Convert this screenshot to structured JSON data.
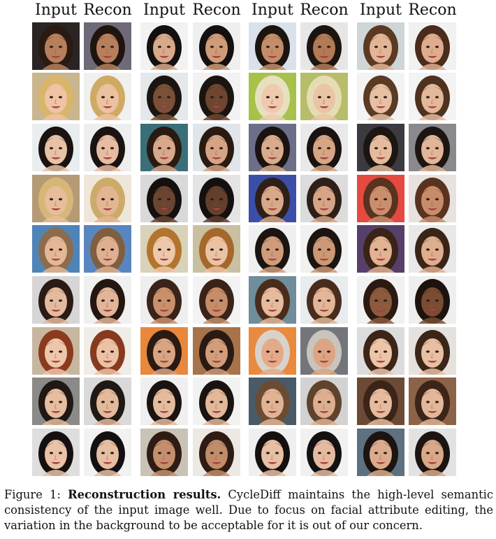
{
  "column_headers": [
    "Input",
    "Recon",
    "Input",
    "Recon",
    "Input",
    "Recon",
    "Input",
    "Recon"
  ],
  "grid": {
    "rows": 9,
    "cols": 8
  },
  "caption": {
    "prefix": "Figure 1: ",
    "title": "Reconstruction results.",
    "body": " CycleDiff maintains the high-level semantic consistency of the input image well. Due to focus on facial attribute editing, the variation in the background to be acceptable for it is out of our concern."
  },
  "tiles": [
    {
      "bg": "#2a2524",
      "hair": "#2b1a12",
      "skin": "#b7805c"
    },
    {
      "bg": "#6f6a78",
      "hair": "#1f1410",
      "skin": "#b7805c"
    },
    {
      "bg": "#f2f2f2",
      "hair": "#141010",
      "skin": "#d8a98a"
    },
    {
      "bg": "#efefef",
      "hair": "#141010",
      "skin": "#cf9b78"
    },
    {
      "bg": "#d9e2ea",
      "hair": "#1c1410",
      "skin": "#c48d6a"
    },
    {
      "bg": "#e6e6e6",
      "hair": "#1c1410",
      "skin": "#b27a55"
    },
    {
      "bg": "#cfd6d8",
      "hair": "#5a3a22",
      "skin": "#e3b597"
    },
    {
      "bg": "#f1f1f1",
      "hair": "#4a2c1c",
      "skin": "#dfad8e"
    },
    {
      "bg": "#c9b58e",
      "hair": "#d9b56a",
      "skin": "#efc3a4"
    },
    {
      "bg": "#f0f0f0",
      "hair": "#ceaa63",
      "skin": "#ecc1a0"
    },
    {
      "bg": "#e4e8ea",
      "hair": "#1b1512",
      "skin": "#7a5038"
    },
    {
      "bg": "#f2f2f2",
      "hair": "#1b1512",
      "skin": "#6e4630"
    },
    {
      "bg": "#a6c24a",
      "hair": "#e7e0c0",
      "skin": "#efc9ae"
    },
    {
      "bg": "#b7bd6a",
      "hair": "#e6dcb4",
      "skin": "#eac4a6"
    },
    {
      "bg": "#f3f3f3",
      "hair": "#5a3b24",
      "skin": "#e7bfa2"
    },
    {
      "bg": "#f3f3f3",
      "hair": "#4e321f",
      "skin": "#e4b89a"
    },
    {
      "bg": "#e9edef",
      "hair": "#1a1311",
      "skin": "#e9c1a5"
    },
    {
      "bg": "#eeeeee",
      "hair": "#1a1311",
      "skin": "#e7bca0"
    },
    {
      "bg": "#3a6e78",
      "hair": "#2a1a12",
      "skin": "#d8a88b"
    },
    {
      "bg": "#dfe5e8",
      "hair": "#2a1a12",
      "skin": "#d5a386"
    },
    {
      "bg": "#6b6f88",
      "hair": "#1a1311",
      "skin": "#d9ab8c"
    },
    {
      "bg": "#e9e9ea",
      "hair": "#1a1311",
      "skin": "#d6a584"
    },
    {
      "bg": "#3a3a40",
      "hair": "#1c1512",
      "skin": "#e5bb9d"
    },
    {
      "bg": "#8a8a8e",
      "hair": "#1c1512",
      "skin": "#e2b597"
    },
    {
      "bg": "#b59a76",
      "hair": "#d7b777",
      "skin": "#e7bd9c"
    },
    {
      "bg": "#efe6da",
      "hair": "#ccaa6a",
      "skin": "#e3b693"
    },
    {
      "bg": "#d9d9d9",
      "hair": "#141010",
      "skin": "#6a4530"
    },
    {
      "bg": "#e4e4e4",
      "hair": "#141010",
      "skin": "#643f2b"
    },
    {
      "bg": "#3c4fa8",
      "hair": "#2e2018",
      "skin": "#d9a889"
    },
    {
      "bg": "#dcdcdc",
      "hair": "#2e2018",
      "skin": "#d7a585"
    },
    {
      "bg": "#e44a3f",
      "hair": "#5a3220",
      "skin": "#c98f6c"
    },
    {
      "bg": "#e7e2dd",
      "hair": "#5a3220",
      "skin": "#c78d6a"
    },
    {
      "bg": "#4f84b8",
      "hair": "#8c6c4c",
      "skin": "#e4b797"
    },
    {
      "bg": "#5a86c0",
      "hair": "#7f5f40",
      "skin": "#dfb090"
    },
    {
      "bg": "#d7d2b8",
      "hair": "#b3742e",
      "skin": "#eec8aa"
    },
    {
      "bg": "#c8c0a0",
      "hair": "#a5682a",
      "skin": "#ebc3a4"
    },
    {
      "bg": "#efefef",
      "hair": "#1b1411",
      "skin": "#cf9c79"
    },
    {
      "bg": "#f1f1f1",
      "hair": "#1b1411",
      "skin": "#cc9875"
    },
    {
      "bg": "#56406a",
      "hair": "#3a2418",
      "skin": "#e2b293"
    },
    {
      "bg": "#e8e8e8",
      "hair": "#3a2418",
      "skin": "#dfae8e"
    },
    {
      "bg": "#d6d6d6",
      "hair": "#2a1b14",
      "skin": "#e4ba9e"
    },
    {
      "bg": "#f0f0f0",
      "hair": "#241712",
      "skin": "#e1b598"
    },
    {
      "bg": "#eeeeee",
      "hair": "#3a2318",
      "skin": "#c9906c"
    },
    {
      "bg": "#f3f3f3",
      "hair": "#3a2318",
      "skin": "#c68d69"
    },
    {
      "bg": "#6f8d9a",
      "hair": "#4a2c1c",
      "skin": "#e6bb9c"
    },
    {
      "bg": "#e8ecee",
      "hair": "#4a2c1c",
      "skin": "#e2b697"
    },
    {
      "bg": "#f1f1f1",
      "hair": "#2a1a12",
      "skin": "#8c5a3c"
    },
    {
      "bg": "#eeeeee",
      "hair": "#1c120e",
      "skin": "#7a4c32"
    },
    {
      "bg": "#c7b7a0",
      "hair": "#8c3a1e",
      "skin": "#eec6aa"
    },
    {
      "bg": "#f0ece6",
      "hair": "#873a20",
      "skin": "#ebc2a4"
    },
    {
      "bg": "#e9873c",
      "hair": "#2a1a12",
      "skin": "#d8a482"
    },
    {
      "bg": "#a7734a",
      "hair": "#2a1a12",
      "skin": "#d29d7b"
    },
    {
      "bg": "#e98a3e",
      "hair": "#d7d3cc",
      "skin": "#e3aa88"
    },
    {
      "bg": "#73757a",
      "hair": "#c9c4bc",
      "skin": "#dca483"
    },
    {
      "bg": "#dcdcdc",
      "hair": "#3b2418",
      "skin": "#ecc4a8"
    },
    {
      "bg": "#e5e1dc",
      "hair": "#3b2418",
      "skin": "#e8bfa2"
    },
    {
      "bg": "#8c8a88",
      "hair": "#1f1814",
      "skin": "#e6bd9f"
    },
    {
      "bg": "#d9d9d9",
      "hair": "#1f1814",
      "skin": "#e3b99b"
    },
    {
      "bg": "#efefef",
      "hair": "#1a1311",
      "skin": "#e5bb9e"
    },
    {
      "bg": "#f2f2f2",
      "hair": "#1a1311",
      "skin": "#e2b79a"
    },
    {
      "bg": "#4a5a66",
      "hair": "#6b4c32",
      "skin": "#e0b394"
    },
    {
      "bg": "#d2d2d2",
      "hair": "#5f432c",
      "skin": "#ddaf90"
    },
    {
      "bg": "#6c4a36",
      "hair": "#3b2418",
      "skin": "#e6bb9d"
    },
    {
      "bg": "#8c6248",
      "hair": "#3b2418",
      "skin": "#e3b799"
    },
    {
      "bg": "#dedede",
      "hair": "#141010",
      "skin": "#e9c2a7"
    },
    {
      "bg": "#f2f2f2",
      "hair": "#141010",
      "skin": "#e6bea2"
    },
    {
      "bg": "#c9c3b6",
      "hair": "#2e1c14",
      "skin": "#c48f6c"
    },
    {
      "bg": "#ece8e3",
      "hair": "#2e1c14",
      "skin": "#c18c69"
    },
    {
      "bg": "#efefef",
      "hair": "#141010",
      "skin": "#e7bfa3"
    },
    {
      "bg": "#f1f1f1",
      "hair": "#141010",
      "skin": "#e4bba0"
    },
    {
      "bg": "#5d7180",
      "hair": "#1b1411",
      "skin": "#dcab8b"
    },
    {
      "bg": "#e2e2e2",
      "hair": "#1b1411",
      "skin": "#d9a888"
    }
  ]
}
